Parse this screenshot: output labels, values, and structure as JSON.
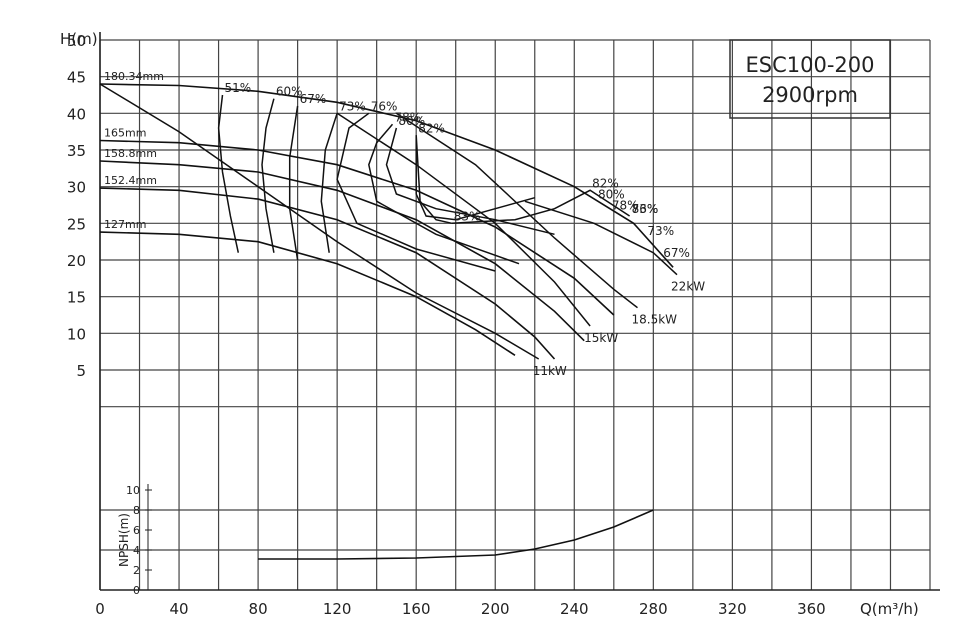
{
  "chart_data": {
    "type": "line",
    "title": [
      "ESC100-200",
      "2900rpm"
    ],
    "xlabel": "Q(m³/h)",
    "ylabel": "H(m)",
    "nlabel": "NPSH(m)",
    "xlim": [
      0,
      420
    ],
    "ylim_head": [
      -25,
      50
    ],
    "ylim_npsh": [
      0,
      10
    ],
    "grid": true,
    "x_ticks": [
      "0",
      "40",
      "80",
      "120",
      "160",
      "200",
      "240",
      "280",
      "320",
      "360"
    ],
    "y_ticks": [
      "5",
      "10",
      "15",
      "20",
      "25",
      "30",
      "35",
      "40",
      "45",
      "50"
    ],
    "npsh_ticks": [
      "0",
      "2",
      "4",
      "6",
      "8",
      "10"
    ],
    "head_curves": [
      {
        "label": "180.34mm",
        "points": [
          [
            0,
            44
          ],
          [
            40,
            43.8
          ],
          [
            80,
            43
          ],
          [
            120,
            41.5
          ],
          [
            160,
            39
          ],
          [
            200,
            35
          ],
          [
            240,
            30
          ],
          [
            270,
            25
          ],
          [
            290,
            19
          ]
        ]
      },
      {
        "label": "165mm",
        "points": [
          [
            0,
            36.3
          ],
          [
            40,
            36
          ],
          [
            80,
            35
          ],
          [
            120,
            33
          ],
          [
            160,
            29.5
          ],
          [
            200,
            24.5
          ],
          [
            240,
            17.5
          ],
          [
            260,
            12.5
          ]
        ]
      },
      {
        "label": "158.8mm",
        "points": [
          [
            0,
            33.5
          ],
          [
            40,
            33
          ],
          [
            80,
            32
          ],
          [
            120,
            29.5
          ],
          [
            160,
            25.5
          ],
          [
            200,
            19.5
          ],
          [
            230,
            13
          ],
          [
            245,
            9
          ]
        ]
      },
      {
        "label": "152.4mm",
        "points": [
          [
            0,
            29.8
          ],
          [
            40,
            29.5
          ],
          [
            80,
            28.3
          ],
          [
            120,
            25.5
          ],
          [
            160,
            21
          ],
          [
            200,
            14
          ],
          [
            220,
            9.5
          ],
          [
            230,
            6.5
          ]
        ]
      },
      {
        "label": "127mm",
        "points": [
          [
            0,
            23.8
          ],
          [
            40,
            23.5
          ],
          [
            80,
            22.5
          ],
          [
            120,
            19.5
          ],
          [
            160,
            15
          ],
          [
            190,
            10.5
          ],
          [
            210,
            7
          ]
        ]
      }
    ],
    "efficiency_labels": [
      {
        "label": "51%",
        "points": [
          [
            70,
            21
          ],
          [
            66,
            26
          ],
          [
            62,
            32
          ],
          [
            60,
            38
          ],
          [
            62,
            42.5
          ]
        ]
      },
      {
        "label": "60%",
        "points": [
          [
            88,
            21
          ],
          [
            84,
            27
          ],
          [
            82,
            33
          ],
          [
            84,
            38
          ],
          [
            88,
            42
          ]
        ]
      },
      {
        "label": "67%",
        "points": [
          [
            100,
            20
          ],
          [
            96,
            27
          ],
          [
            96,
            34
          ],
          [
            100,
            41
          ]
        ]
      },
      {
        "label": "73%",
        "points": [
          [
            116,
            21
          ],
          [
            112,
            28
          ],
          [
            114,
            35
          ],
          [
            120,
            40
          ]
        ]
      },
      {
        "label": "76%",
        "points": [
          [
            200,
            18.5
          ],
          [
            160,
            21.5
          ],
          [
            130,
            25
          ],
          [
            120,
            31
          ],
          [
            126,
            38
          ],
          [
            136,
            40
          ]
        ]
      },
      {
        "label": "78%",
        "points": [
          [
            212,
            19.5
          ],
          [
            170,
            23.5
          ],
          [
            140,
            28
          ],
          [
            136,
            33
          ],
          [
            140,
            36
          ],
          [
            148,
            38.5
          ]
        ]
      },
      {
        "label": "80%",
        "points": [
          [
            230,
            23.5
          ],
          [
            200,
            25.5
          ],
          [
            170,
            27
          ],
          [
            150,
            29
          ],
          [
            145,
            33
          ],
          [
            150,
            38
          ]
        ]
      },
      {
        "label": "82%",
        "points": [
          [
            220,
            28.5
          ],
          [
            200,
            27
          ],
          [
            180,
            25.5
          ],
          [
            165,
            26
          ],
          [
            160,
            29
          ],
          [
            160,
            37
          ]
        ]
      },
      {
        "label": "83%",
        "points": [
          [
            160,
            37
          ],
          [
            162,
            28
          ],
          [
            170,
            25.5
          ],
          [
            178,
            25
          ]
        ]
      },
      {
        "label": "83%",
        "points": [
          [
            178,
            25
          ],
          [
            210,
            25.5
          ],
          [
            230,
            27
          ],
          [
            248,
            29.5
          ],
          [
            268,
            26
          ]
        ]
      },
      {
        "label": "82%",
        "points": [
          [
            248,
            29.5
          ]
        ]
      },
      {
        "label": "80%",
        "points": [
          [
            251,
            28
          ]
        ]
      },
      {
        "label": "78%",
        "points": [
          [
            258,
            26.5
          ]
        ]
      },
      {
        "label": "76%",
        "points": [
          [
            268,
            26
          ]
        ]
      },
      {
        "label": "73%",
        "points": [
          [
            276,
            23
          ]
        ]
      },
      {
        "label": "67%",
        "points": [
          [
            284,
            20
          ]
        ]
      }
    ],
    "power_curves": [
      {
        "label": "11kW",
        "points": [
          [
            0,
            44
          ],
          [
            40,
            37.5
          ],
          [
            80,
            30
          ],
          [
            120,
            22.5
          ],
          [
            160,
            15.5
          ],
          [
            200,
            10
          ],
          [
            222,
            6.5
          ]
        ]
      },
      {
        "label": "15kW",
        "points": [
          [
            120,
            40
          ],
          [
            160,
            33
          ],
          [
            200,
            25
          ],
          [
            230,
            17
          ],
          [
            248,
            11
          ]
        ]
      },
      {
        "label": "18.5kW",
        "points": [
          [
            150,
            40
          ],
          [
            190,
            33
          ],
          [
            230,
            23
          ],
          [
            260,
            16
          ],
          [
            272,
            13.5
          ]
        ]
      },
      {
        "label": "22kW",
        "points": [
          [
            215,
            28
          ],
          [
            250,
            25
          ],
          [
            280,
            21
          ],
          [
            292,
            18
          ]
        ]
      }
    ],
    "npsh": {
      "x": [
        80,
        120,
        160,
        200,
        220,
        240,
        260,
        280
      ],
      "y": [
        3.1,
        3.1,
        3.2,
        3.5,
        4.1,
        5,
        6.3,
        8
      ]
    }
  }
}
